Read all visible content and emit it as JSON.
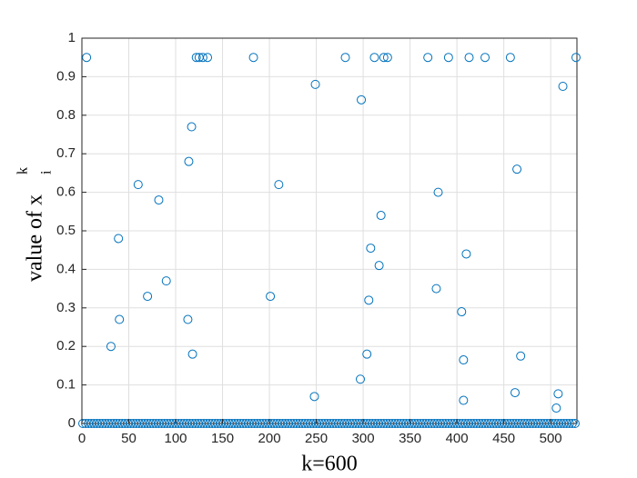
{
  "chart_data": {
    "type": "scatter",
    "xlabel": "k=600",
    "ylabel": "value of  x",
    "ylabel_superscript": "k",
    "ylabel_subscript": "i",
    "xlim": [
      0,
      528
    ],
    "ylim": [
      0,
      1
    ],
    "xticks": [
      0,
      50,
      100,
      150,
      200,
      250,
      300,
      350,
      400,
      450,
      500
    ],
    "yticks": [
      0,
      0.1,
      0.2,
      0.3,
      0.4,
      0.5,
      0.6,
      0.7,
      0.8,
      0.9,
      1
    ],
    "grid": true,
    "series": [
      {
        "color": "#0072BD",
        "x": [
          5,
          122,
          125,
          129,
          134,
          183,
          281,
          312,
          322,
          326,
          369,
          391,
          413,
          430,
          457,
          527,
          249,
          298,
          513,
          117,
          114,
          60,
          210,
          82,
          464,
          380,
          319,
          39,
          308,
          410,
          317,
          90,
          70,
          201,
          378,
          306,
          40,
          113,
          405,
          31,
          118,
          304,
          407,
          468,
          297,
          248,
          407,
          462,
          508,
          506
        ],
        "values": [
          0.95,
          0.95,
          0.95,
          0.95,
          0.95,
          0.95,
          0.95,
          0.95,
          0.95,
          0.95,
          0.95,
          0.95,
          0.95,
          0.95,
          0.95,
          0.95,
          0.88,
          0.84,
          0.875,
          0.77,
          0.68,
          0.62,
          0.62,
          0.58,
          0.66,
          0.6,
          0.54,
          0.48,
          0.455,
          0.44,
          0.41,
          0.37,
          0.33,
          0.33,
          0.35,
          0.32,
          0.27,
          0.27,
          0.29,
          0.2,
          0.18,
          0.18,
          0.165,
          0.175,
          0.115,
          0.07,
          0.06,
          0.08,
          0.077,
          0.04
        ]
      },
      {
        "color": "#0072BD",
        "x": [
          1,
          4,
          7,
          10,
          13,
          16,
          19,
          22,
          25,
          28,
          31,
          34,
          37,
          40,
          43,
          46,
          49,
          52,
          55,
          58,
          61,
          64,
          67,
          70,
          73,
          76,
          79,
          82,
          85,
          88,
          91,
          94,
          97,
          100,
          103,
          106,
          109,
          112,
          115,
          118,
          121,
          124,
          127,
          130,
          133,
          136,
          139,
          142,
          145,
          148,
          151,
          154,
          157,
          160,
          163,
          166,
          169,
          172,
          175,
          178,
          181,
          184,
          187,
          190,
          193,
          196,
          199,
          202,
          205,
          208,
          211,
          214,
          217,
          220,
          223,
          226,
          229,
          232,
          235,
          238,
          241,
          244,
          247,
          250,
          253,
          256,
          259,
          262,
          265,
          268,
          271,
          274,
          277,
          280,
          283,
          286,
          289,
          292,
          295,
          298,
          301,
          304,
          307,
          310,
          313,
          316,
          319,
          322,
          325,
          328,
          331,
          334,
          337,
          340,
          343,
          346,
          349,
          352,
          355,
          358,
          361,
          364,
          367,
          370,
          373,
          376,
          379,
          382,
          385,
          388,
          391,
          394,
          397,
          400,
          403,
          406,
          409,
          412,
          415,
          418,
          421,
          424,
          427,
          430,
          433,
          436,
          439,
          442,
          445,
          448,
          451,
          454,
          457,
          460,
          463,
          466,
          469,
          472,
          475,
          478,
          481,
          484,
          487,
          490,
          493,
          496,
          499,
          502,
          505,
          508,
          511,
          514,
          517,
          520,
          523,
          526
        ],
        "values": [
          0,
          0,
          0,
          0,
          0,
          0,
          0,
          0,
          0,
          0,
          0,
          0,
          0,
          0,
          0,
          0,
          0,
          0,
          0,
          0,
          0,
          0,
          0,
          0,
          0,
          0,
          0,
          0,
          0,
          0,
          0,
          0,
          0,
          0,
          0,
          0,
          0,
          0,
          0,
          0,
          0,
          0,
          0,
          0,
          0,
          0,
          0,
          0,
          0,
          0,
          0,
          0,
          0,
          0,
          0,
          0,
          0,
          0,
          0,
          0,
          0,
          0,
          0,
          0,
          0,
          0,
          0,
          0,
          0,
          0,
          0,
          0,
          0,
          0,
          0,
          0,
          0,
          0,
          0,
          0,
          0,
          0,
          0,
          0,
          0,
          0,
          0,
          0,
          0,
          0,
          0,
          0,
          0,
          0,
          0,
          0,
          0,
          0,
          0,
          0,
          0,
          0,
          0,
          0,
          0,
          0,
          0,
          0,
          0,
          0,
          0,
          0,
          0,
          0,
          0,
          0,
          0,
          0,
          0,
          0,
          0,
          0,
          0,
          0,
          0,
          0,
          0,
          0,
          0,
          0,
          0,
          0,
          0,
          0,
          0,
          0,
          0,
          0,
          0,
          0,
          0,
          0,
          0,
          0,
          0,
          0,
          0,
          0,
          0,
          0,
          0,
          0,
          0,
          0,
          0,
          0,
          0,
          0,
          0,
          0,
          0,
          0,
          0,
          0,
          0,
          0,
          0,
          0,
          0,
          0,
          0,
          0,
          0,
          0,
          0,
          0
        ]
      }
    ]
  }
}
